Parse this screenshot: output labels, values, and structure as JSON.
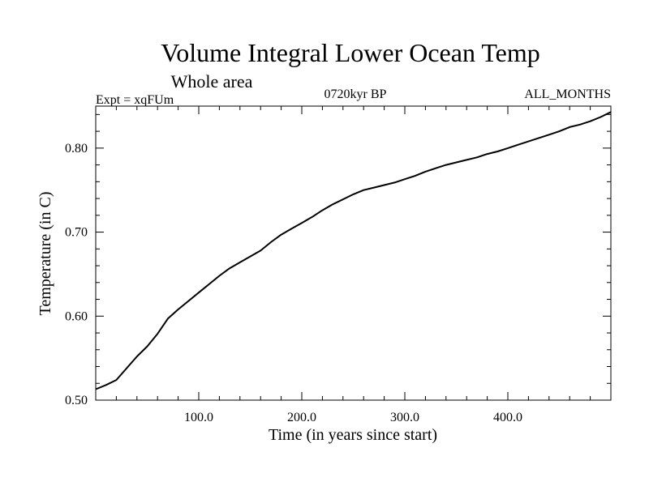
{
  "chart_data": {
    "type": "line",
    "title": "Volume Integral Lower Ocean Temp",
    "subtitle": "Whole area",
    "annotations": {
      "left": "Expt = xqFUm",
      "center": "0720kyr BP",
      "right": "ALL_MONTHS"
    },
    "xlabel": "Time (in years since start)",
    "ylabel": "Temperature (in C)",
    "xlim": [
      0,
      500
    ],
    "ylim": [
      0.5,
      0.85
    ],
    "xticks": [
      100,
      200,
      300,
      400
    ],
    "xtick_labels": [
      "100.0",
      "200.0",
      "300.0",
      "400.0"
    ],
    "yticks": [
      0.5,
      0.6,
      0.7,
      0.8
    ],
    "ytick_labels": [
      "0.50",
      "0.60",
      "0.70",
      "0.80"
    ],
    "grid": false,
    "series": [
      {
        "name": "Volume Integral Lower Ocean Temp",
        "color": "#000000",
        "x": [
          0,
          10,
          20,
          30,
          40,
          50,
          60,
          70,
          80,
          90,
          100,
          110,
          120,
          130,
          140,
          150,
          160,
          170,
          180,
          190,
          200,
          210,
          220,
          230,
          240,
          250,
          260,
          270,
          280,
          290,
          300,
          310,
          320,
          330,
          340,
          350,
          360,
          370,
          380,
          390,
          400,
          410,
          420,
          430,
          440,
          450,
          460,
          470,
          480,
          490,
          500
        ],
        "y": [
          0.513,
          0.518,
          0.524,
          0.538,
          0.552,
          0.564,
          0.579,
          0.597,
          0.608,
          0.618,
          0.628,
          0.638,
          0.648,
          0.657,
          0.664,
          0.671,
          0.678,
          0.688,
          0.697,
          0.704,
          0.711,
          0.718,
          0.726,
          0.733,
          0.739,
          0.745,
          0.75,
          0.753,
          0.756,
          0.759,
          0.763,
          0.767,
          0.772,
          0.776,
          0.78,
          0.783,
          0.786,
          0.789,
          0.793,
          0.796,
          0.8,
          0.804,
          0.808,
          0.812,
          0.816,
          0.82,
          0.825,
          0.828,
          0.832,
          0.837,
          0.843
        ]
      }
    ]
  }
}
